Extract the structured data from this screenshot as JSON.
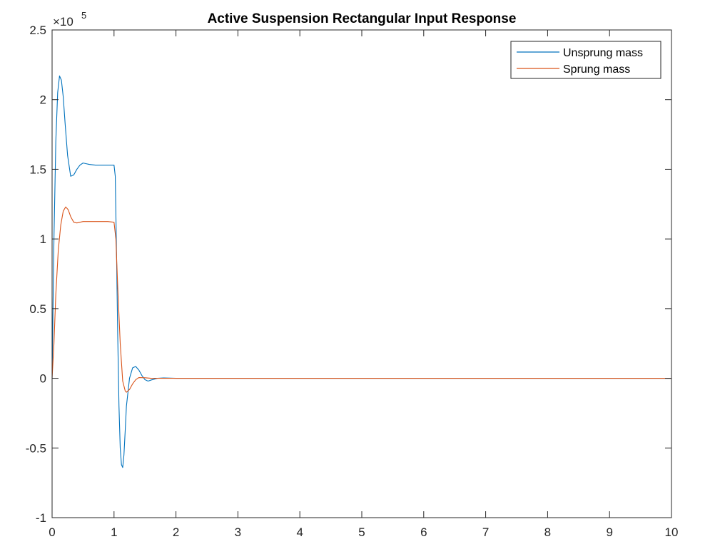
{
  "chart_data": {
    "type": "line",
    "title": "Active Suspension Rectangular Input Response",
    "xlabel": "",
    "ylabel": "",
    "xlim": [
      0,
      10
    ],
    "ylim": [
      -1,
      2.5
    ],
    "y_exponent_base": "×10",
    "y_exponent_power": "5",
    "x_ticks": [
      0,
      1,
      2,
      3,
      4,
      5,
      6,
      7,
      8,
      9,
      10
    ],
    "y_ticks": [
      -1,
      -0.5,
      0,
      0.5,
      1,
      1.5,
      2,
      2.5
    ],
    "grid": false,
    "legend_position": "top-right",
    "series": [
      {
        "name": "Unsprung mass",
        "color": "#0072BD",
        "x": [
          0,
          0.03,
          0.06,
          0.09,
          0.12,
          0.15,
          0.18,
          0.21,
          0.25,
          0.3,
          0.35,
          0.4,
          0.45,
          0.5,
          0.55,
          0.6,
          0.7,
          0.8,
          0.9,
          1.0,
          1.02,
          1.04,
          1.06,
          1.08,
          1.1,
          1.12,
          1.14,
          1.16,
          1.18,
          1.2,
          1.25,
          1.3,
          1.35,
          1.4,
          1.45,
          1.5,
          1.55,
          1.6,
          1.7,
          1.8,
          2.0,
          3.0,
          4.0,
          5.0,
          6.0,
          7.0,
          8.0,
          9.0,
          10.0
        ],
        "y": [
          0,
          1.0,
          1.7,
          2.05,
          2.17,
          2.14,
          2.02,
          1.83,
          1.6,
          1.45,
          1.46,
          1.5,
          1.53,
          1.545,
          1.54,
          1.535,
          1.53,
          1.53,
          1.53,
          1.53,
          1.45,
          0.9,
          0.3,
          -0.2,
          -0.5,
          -0.62,
          -0.64,
          -0.55,
          -0.38,
          -0.2,
          0.0,
          0.075,
          0.085,
          0.06,
          0.02,
          -0.01,
          -0.02,
          -0.012,
          0.0,
          0.003,
          0,
          0,
          0,
          0,
          0,
          0,
          0,
          0,
          0
        ]
      },
      {
        "name": "Sprung mass",
        "color": "#D95319",
        "x": [
          0,
          0.03,
          0.06,
          0.1,
          0.14,
          0.18,
          0.22,
          0.26,
          0.3,
          0.35,
          0.4,
          0.45,
          0.5,
          0.6,
          0.7,
          0.8,
          0.9,
          1.0,
          1.03,
          1.06,
          1.1,
          1.14,
          1.18,
          1.2,
          1.25,
          1.3,
          1.35,
          1.4,
          1.5,
          1.6,
          1.7,
          2.0,
          3.0,
          4.0,
          5.0,
          6.0,
          7.0,
          8.0,
          9.0,
          10.0
        ],
        "y": [
          0,
          0.25,
          0.6,
          0.92,
          1.1,
          1.2,
          1.23,
          1.21,
          1.16,
          1.12,
          1.115,
          1.12,
          1.125,
          1.125,
          1.125,
          1.125,
          1.125,
          1.12,
          1.0,
          0.65,
          0.25,
          -0.02,
          -0.09,
          -0.1,
          -0.08,
          -0.04,
          -0.01,
          0.005,
          0.004,
          0.0,
          0.0,
          0,
          0,
          0,
          0,
          0,
          0,
          0,
          0,
          0
        ]
      }
    ]
  }
}
